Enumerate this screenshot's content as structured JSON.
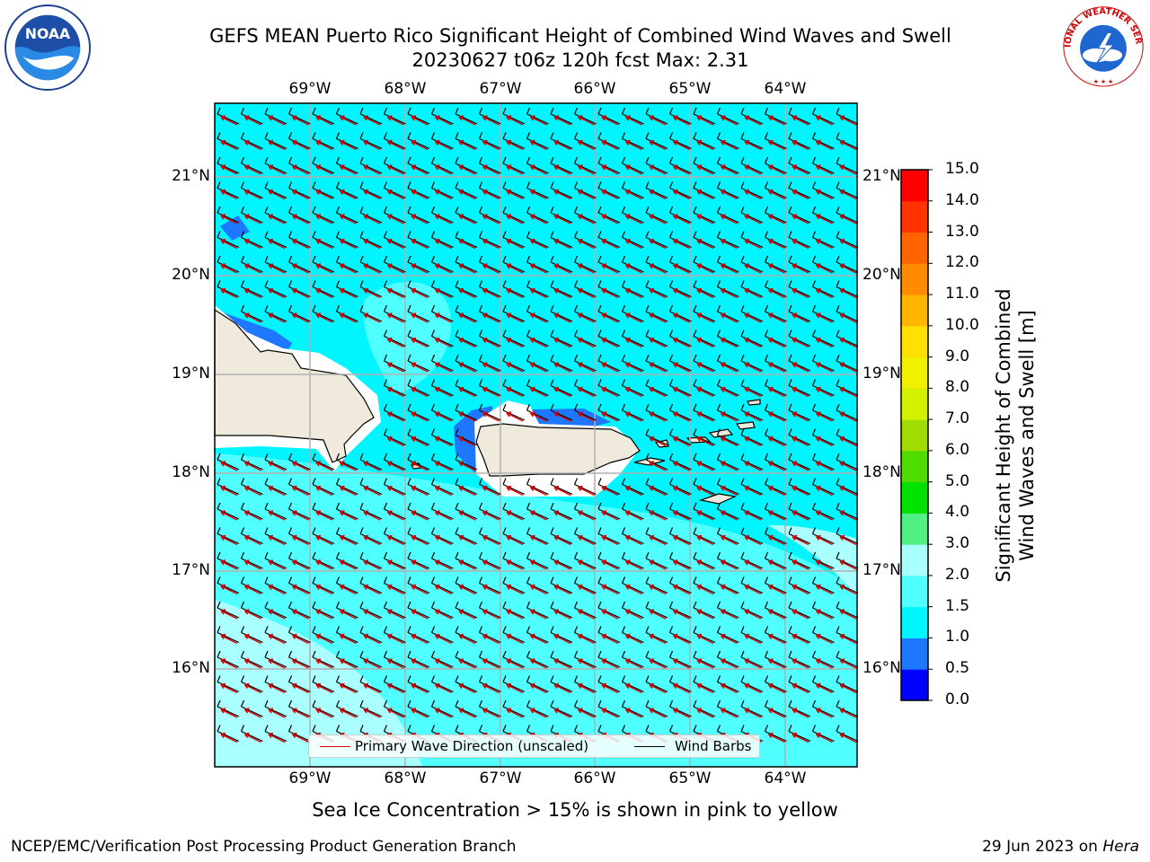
{
  "title_line1": "GEFS MEAN Puerto Rico Significant Height of Combined Wind Waves and Swell",
  "title_line2": "20230627 t06z 120h fcst   Max: 2.31",
  "lon_ticks": [
    "69°W",
    "68°W",
    "67°W",
    "66°W",
    "65°W",
    "64°W"
  ],
  "lat_ticks": [
    "21°N",
    "20°N",
    "19°N",
    "18°N",
    "17°N",
    "16°N"
  ],
  "colorbar": {
    "label_line1": "Significant Height of Combined",
    "label_line2": "Wind Waves and Swell [m]",
    "ticks": [
      "0.0",
      "0.5",
      "1.0",
      "1.5",
      "2.0",
      "3.0",
      "4.0",
      "5.0",
      "6.0",
      "7.0",
      "8.0",
      "9.0",
      "10.0",
      "11.0",
      "12.0",
      "13.0",
      "14.0",
      "15.0"
    ],
    "colors": [
      "#0000ff",
      "#1e78ff",
      "#00f5ff",
      "#50ffff",
      "#aaffff",
      "#50f082",
      "#00e100",
      "#50dc00",
      "#a0dc00",
      "#d2f000",
      "#f0f000",
      "#ffe000",
      "#ffb400",
      "#ff8c00",
      "#ff6400",
      "#ff3200",
      "#ff0000"
    ]
  },
  "legend": {
    "wave_label": "Primary Wave Direction (unscaled)",
    "barb_label": "Wind Barbs",
    "wave_color": "#e00000",
    "barb_color": "#000000"
  },
  "footnote": "Sea Ice Concentration > 15% is shown in pink to yellow",
  "credit_left": "NCEP/EMC/Verification Post Processing Product Generation Branch",
  "credit_right_prefix": "29 Jun 2023 on ",
  "credit_right_machine": "Hera",
  "logos": {
    "left": "NOAA",
    "right": "NATIONAL WEATHER SERVICE"
  }
}
